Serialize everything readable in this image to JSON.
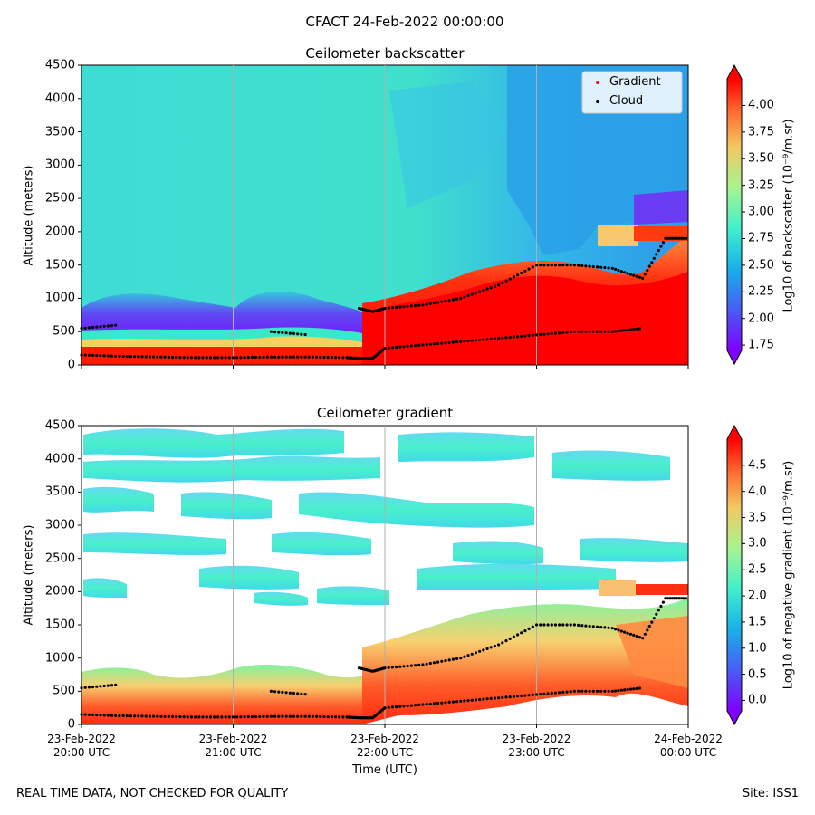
{
  "figure": {
    "suptitle": "CFACT 24-Feb-2022 00:00:00",
    "footer_left": "REAL TIME DATA, NOT CHECKED FOR QUALITY",
    "footer_right": "Site: ISS1",
    "xlabel": "Time (UTC)"
  },
  "chart_data": [
    {
      "type": "heatmap",
      "title": "Ceilometer backscatter",
      "ylabel": "Altitude (meters)",
      "ylim": [
        0,
        4500
      ],
      "yticks": [
        "0",
        "500",
        "1000",
        "1500",
        "2000",
        "2500",
        "3000",
        "3500",
        "4000",
        "4500"
      ],
      "ytick_values": [
        0,
        500,
        1000,
        1500,
        2000,
        2500,
        3000,
        3500,
        4000,
        4500
      ],
      "xlim_hours": [
        20,
        24
      ],
      "xtick_hours": [
        20,
        21,
        22,
        23,
        24
      ],
      "grid": "vertical",
      "legend_position": "top-right",
      "legend": [
        {
          "label": "Gradient",
          "color": "#ff0000"
        },
        {
          "label": "Cloud",
          "color": "#000000"
        }
      ],
      "colorbar": {
        "label": "Log10 of backscatter (10⁻⁹/m.sr)",
        "range": [
          1.7,
          4.25
        ],
        "ticks": [
          "4.00",
          "3.75",
          "3.50",
          "3.25",
          "3.00",
          "2.75",
          "2.50",
          "2.25",
          "2.00",
          "1.75"
        ],
        "tick_values": [
          4.0,
          3.75,
          3.5,
          3.25,
          3.0,
          2.75,
          2.5,
          2.25,
          2.0,
          1.75
        ]
      },
      "cloud_base_m": {
        "t_hours": [
          20.0,
          20.25,
          20.5,
          20.75,
          21.0,
          21.25,
          21.5,
          21.75,
          21.83,
          21.92,
          22.0,
          22.25,
          22.5,
          22.75,
          23.0,
          23.25,
          23.5,
          23.7,
          23.85,
          24.0
        ],
        "low": [
          150,
          130,
          120,
          110,
          110,
          120,
          120,
          110,
          100,
          100,
          250,
          300,
          350,
          400,
          450,
          500,
          500,
          550,
          null,
          null
        ],
        "upper": [
          550,
          600,
          null,
          null,
          null,
          500,
          450,
          null,
          850,
          800,
          850,
          900,
          1000,
          1200,
          1500,
          1500,
          1450,
          1300,
          1900,
          1900
        ]
      }
    },
    {
      "type": "heatmap",
      "title": "Ceilometer gradient",
      "ylabel": "Altitude (meters)",
      "ylim": [
        0,
        4500
      ],
      "yticks": [
        "0",
        "500",
        "1000",
        "1500",
        "2000",
        "2500",
        "3000",
        "3500",
        "4000",
        "4500"
      ],
      "ytick_values": [
        0,
        500,
        1000,
        1500,
        2000,
        2500,
        3000,
        3500,
        4000,
        4500
      ],
      "xlim_hours": [
        20,
        24
      ],
      "xtick_hours": [
        20,
        21,
        22,
        23,
        24
      ],
      "xticks": [
        {
          "date": "23-Feb-2022",
          "time": "20:00 UTC"
        },
        {
          "date": "23-Feb-2022",
          "time": "21:00 UTC"
        },
        {
          "date": "23-Feb-2022",
          "time": "22:00 UTC"
        },
        {
          "date": "23-Feb-2022",
          "time": "23:00 UTC"
        },
        {
          "date": "24-Feb-2022",
          "time": "00:00 UTC"
        }
      ],
      "grid": "vertical",
      "colorbar": {
        "label": "Log10 of negative gradient (10⁻⁹/m.sr)",
        "range": [
          -0.2,
          5.0
        ],
        "ticks": [
          "4.5",
          "4.0",
          "3.5",
          "3.0",
          "2.5",
          "2.0",
          "1.5",
          "1.0",
          "0.5",
          "0.0"
        ],
        "tick_values": [
          4.5,
          4.0,
          3.5,
          3.0,
          2.5,
          2.0,
          1.5,
          1.0,
          0.5,
          0.0
        ]
      }
    }
  ]
}
